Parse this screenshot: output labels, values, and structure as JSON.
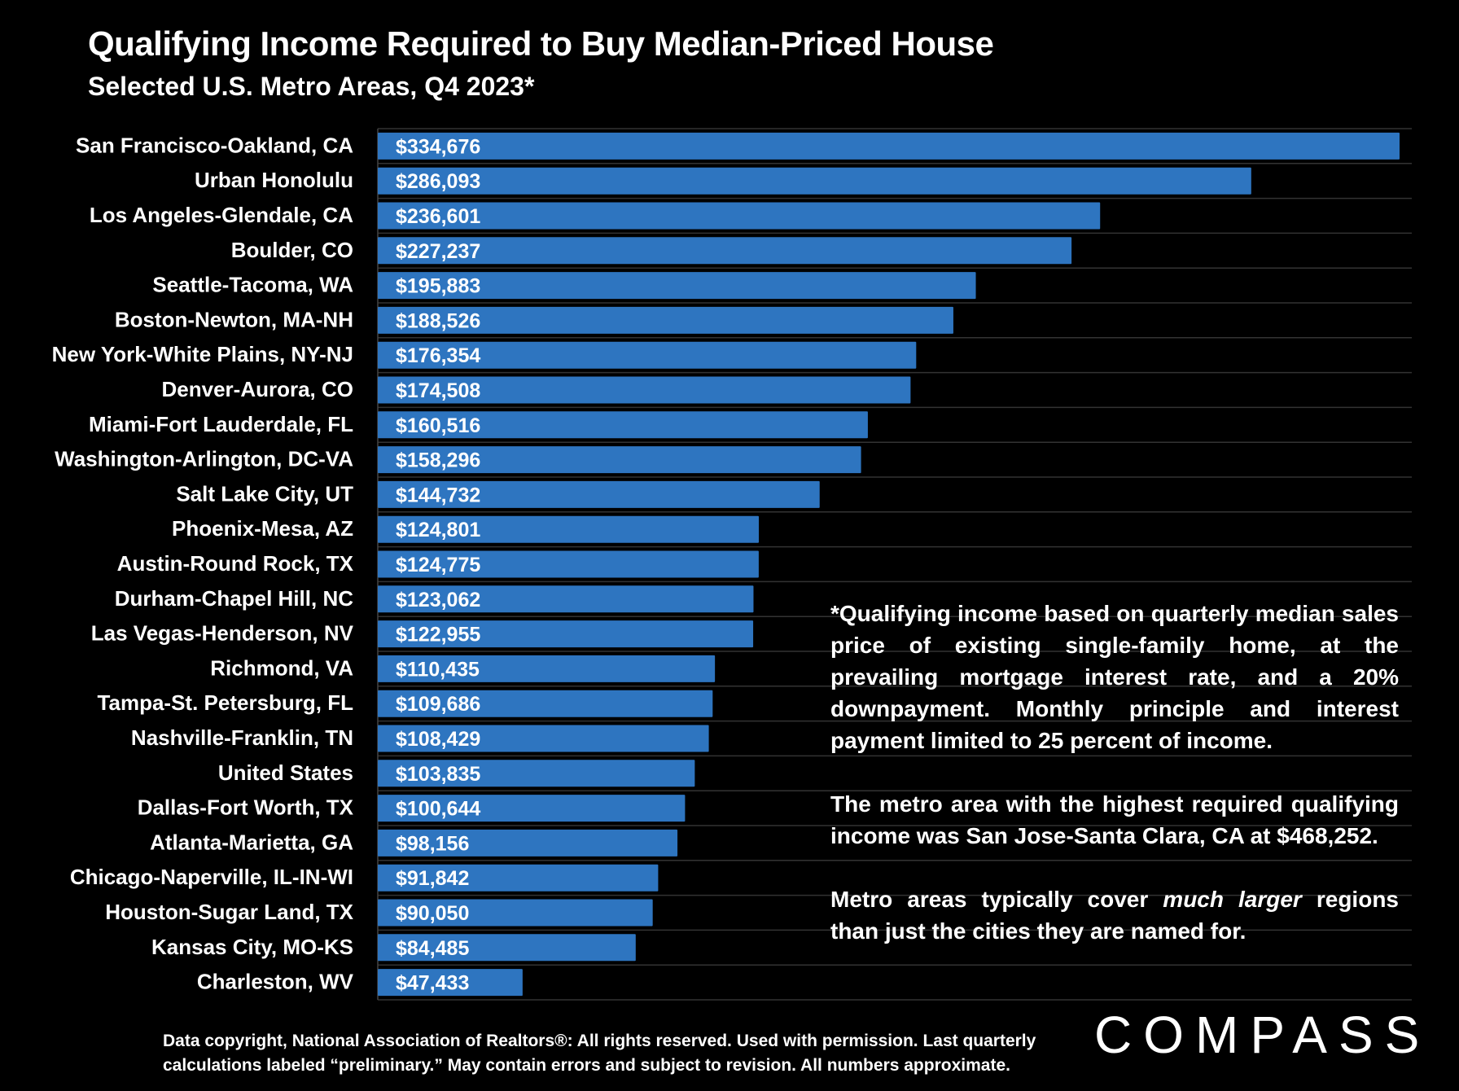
{
  "colors": {
    "background": "#000000",
    "bar": "#2e75c0",
    "text": "#ffffff",
    "grid": "#333333"
  },
  "chart_data": {
    "type": "bar",
    "orientation": "horizontal",
    "title": "Qualifying Income Required to Buy Median-Priced House",
    "subtitle": "Selected U.S. Metro Areas, Q4 2023*",
    "categories": [
      "San Francisco-Oakland, CA",
      "Urban Honolulu",
      "Los Angeles-Glendale, CA",
      "Boulder, CO",
      "Seattle-Tacoma, WA",
      "Boston-Newton, MA-NH",
      "New York-White Plains, NY-NJ",
      "Denver-Aurora, CO",
      "Miami-Fort Lauderdale, FL",
      "Washington-Arlington, DC-VA",
      "Salt Lake City, UT",
      "Phoenix-Mesa, AZ",
      "Austin-Round Rock, TX",
      "Durham-Chapel Hill, NC",
      "Las Vegas-Henderson, NV",
      "Richmond, VA",
      "Tampa-St. Petersburg, FL",
      "Nashville-Franklin, TN",
      "United States",
      "Dallas-Fort Worth, TX",
      "Atlanta-Marietta, GA",
      "Chicago-Naperville, IL-IN-WI",
      "Houston-Sugar Land, TX",
      "Kansas City, MO-KS",
      "Charleston, WV"
    ],
    "values": [
      334676,
      286093,
      236601,
      227237,
      195883,
      188526,
      176354,
      174508,
      160516,
      158296,
      144732,
      124801,
      124775,
      123062,
      122955,
      110435,
      109686,
      108429,
      103835,
      100644,
      98156,
      91842,
      90050,
      84485,
      47433
    ],
    "labels": [
      "$334,676",
      "$286,093",
      "$236,601",
      "$227,237",
      "$195,883",
      "$188,526",
      "$176,354",
      "$174,508",
      "$160,516",
      "$158,296",
      "$144,732",
      "$124,801",
      "$124,775",
      "$123,062",
      "$122,955",
      "$110,435",
      "$109,686",
      "$108,429",
      "$103,835",
      "$100,644",
      "$98,156",
      "$91,842",
      "$90,050",
      "$84,485",
      "$47,433"
    ],
    "xlim": [
      0,
      340000
    ],
    "xlabel": "",
    "ylabel": "",
    "grid": true,
    "legend": "none"
  },
  "notes": {
    "p1": "*Qualifying income based on quarterly median sales price of existing single-family home, at the prevailing mortgage interest rate, and a 20% downpayment. Monthly principle and interest payment limited to 25 percent of income.",
    "p2": "The metro area with the highest required qualifying income was San Jose-Santa Clara, CA at $468,252.",
    "p3_before": "Metro areas typically cover ",
    "p3_emph": "much larger",
    "p3_after": " regions than just the cities they are named for."
  },
  "footer": {
    "line1": "Data copyright, National Association of Realtors®: All rights reserved. Used with permission. Last quarterly",
    "line2": "calculations labeled “preliminary.” May contain errors and subject to revision. All numbers approximate."
  },
  "logo": "COMPASS"
}
